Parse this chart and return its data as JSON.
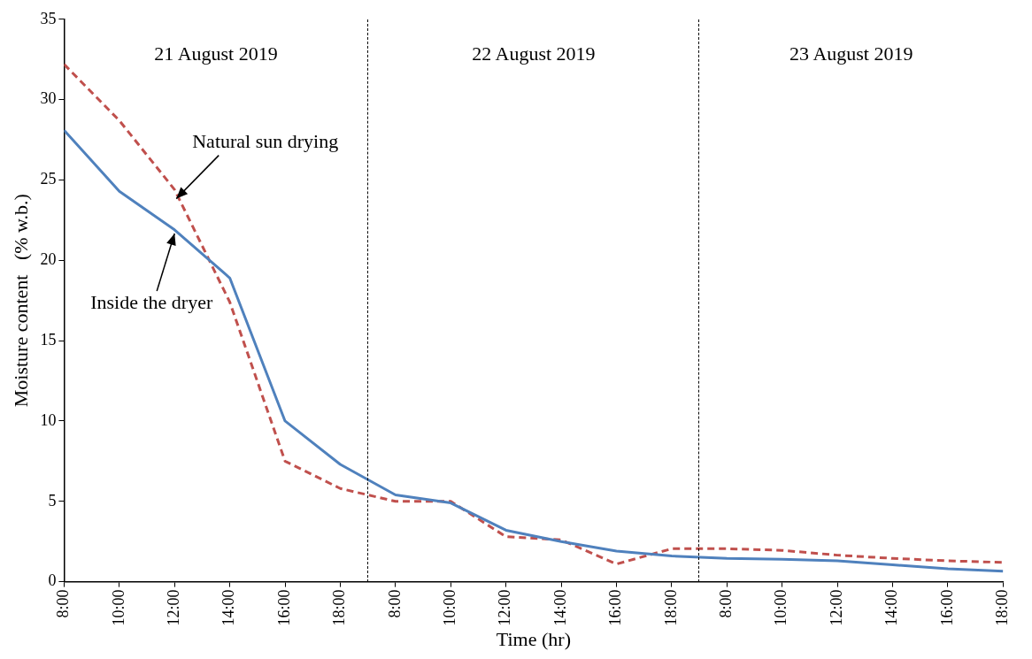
{
  "chart_data": {
    "type": "line",
    "xlabel": "Time (hr)",
    "ylabel": "Moisture content   (% w.b.)",
    "categories": [
      "8:00",
      "10:00",
      "12:00",
      "14:00",
      "16:00",
      "18:00",
      "8:00",
      "10:00",
      "12:00",
      "14:00",
      "16:00",
      "18:00",
      "8:00",
      "10:00",
      "12:00",
      "14:00",
      "16:00",
      "18:00"
    ],
    "series": [
      {
        "color": "#4f81bd",
        "line_style": "solid",
        "values": [
          28.1,
          24.3,
          21.9,
          18.9,
          10.0,
          7.3,
          5.4,
          4.9,
          3.2,
          2.5,
          1.9,
          1.6,
          1.45,
          1.4,
          1.3,
          1.05,
          0.8,
          0.65
        ]
      },
      {
        "color": "#c0504d",
        "line_style": "dashed",
        "values": [
          32.2,
          28.7,
          24.4,
          17.4,
          7.5,
          5.8,
          5.0,
          5.0,
          2.8,
          2.6,
          1.1,
          2.05,
          2.05,
          1.95,
          1.65,
          1.45,
          1.3,
          1.2
        ]
      }
    ],
    "ylim": [
      0,
      35
    ],
    "yticks": [
      0,
      5,
      10,
      15,
      20,
      25,
      30,
      35
    ],
    "grid": false,
    "legend": false,
    "marker": "none",
    "annotations": [
      "21 August 2019",
      "22 August 2019",
      "23 August 2019",
      {
        "text": "Natural sun drying",
        "x": "12:00",
        "y": 24
      },
      {
        "text": "Inside the dryer",
        "x": "12:00",
        "y": 22
      }
    ]
  }
}
